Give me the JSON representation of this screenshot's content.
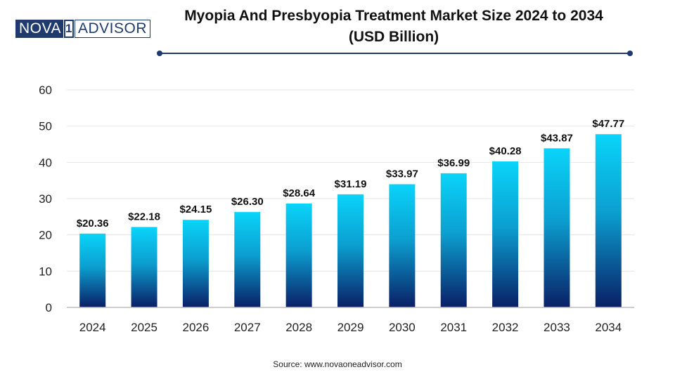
{
  "logo": {
    "part1": "NOVA",
    "part2": "1",
    "part3": "ADVISOR"
  },
  "title_line1": "Myopia And Presbyopia Treatment Market Size 2024 to 2034",
  "title_line2": "(USD Billion)",
  "source": "Source: www.novaoneadvisor.com",
  "colors": {
    "bar_top": "#0ad4f9",
    "bar_bottom": "#0a1f66",
    "accent": "#1e3a6e"
  },
  "chart_data": {
    "type": "bar",
    "title": "Myopia And Presbyopia Treatment Market Size 2024 to 2034 (USD Billion)",
    "categories": [
      "2024",
      "2025",
      "2026",
      "2027",
      "2028",
      "2029",
      "2030",
      "2031",
      "2032",
      "2033",
      "2034"
    ],
    "values": [
      20.36,
      22.18,
      24.15,
      26.3,
      28.64,
      31.19,
      33.97,
      36.99,
      40.28,
      43.87,
      47.77
    ],
    "labels": [
      "$20.36",
      "$22.18",
      "$24.15",
      "$26.30",
      "$28.64",
      "$31.19",
      "$33.97",
      "$36.99",
      "$40.28",
      "$43.87",
      "$47.77"
    ],
    "yticks": [
      "0",
      "10",
      "20",
      "30",
      "40",
      "50",
      "60"
    ],
    "ylim": [
      0,
      60
    ],
    "xlabel": "",
    "ylabel": "",
    "grid": true
  }
}
